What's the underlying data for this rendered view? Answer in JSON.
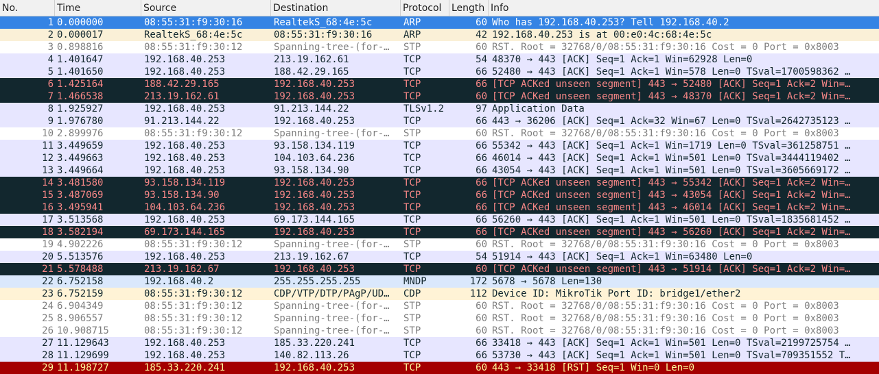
{
  "columns": {
    "no": "No.",
    "time": "Time",
    "source": "Source",
    "destination": "Destination",
    "protocol": "Protocol",
    "length": "Length",
    "info": "Info"
  },
  "packets": [
    {
      "no": "1",
      "time": "0.000000",
      "source": "08:55:31:f9:30:16",
      "destination": "RealtekS_68:4e:5c",
      "protocol": "ARP",
      "length": "60",
      "info": "Who has 192.168.40.253? Tell 192.168.40.2",
      "style": "sel"
    },
    {
      "no": "2",
      "time": "0.000017",
      "source": "RealtekS_68:4e:5c",
      "destination": "08:55:31:f9:30:16",
      "protocol": "ARP",
      "length": "42",
      "info": "192.168.40.253 is at 00:e0:4c:68:4e:5c",
      "style": "arp"
    },
    {
      "no": "3",
      "time": "0.898816",
      "source": "08:55:31:f9:30:12",
      "destination": "Spanning-tree-(for-…",
      "protocol": "STP",
      "length": "60",
      "info": "RST. Root = 32768/0/08:55:31:f9:30:16  Cost = 0  Port = 0x8003",
      "style": "stp"
    },
    {
      "no": "4",
      "time": "1.401647",
      "source": "192.168.40.253",
      "destination": "213.19.162.61",
      "protocol": "TCP",
      "length": "54",
      "info": "48370 → 443 [ACK] Seq=1 Ack=1 Win=62928 Len=0",
      "style": "tcp"
    },
    {
      "no": "5",
      "time": "1.401650",
      "source": "192.168.40.253",
      "destination": "188.42.29.165",
      "protocol": "TCP",
      "length": "66",
      "info": "52480 → 443 [ACK] Seq=1 Ack=1 Win=578 Len=0 TSval=1700598362 …",
      "style": "tcp"
    },
    {
      "no": "6",
      "time": "1.425164",
      "source": "188.42.29.165",
      "destination": "192.168.40.253",
      "protocol": "TCP",
      "length": "66",
      "info": "[TCP ACKed unseen segment] 443 → 52480 [ACK] Seq=1 Ack=2 Win=…",
      "style": "bad"
    },
    {
      "no": "7",
      "time": "1.466538",
      "source": "213.19.162.61",
      "destination": "192.168.40.253",
      "protocol": "TCP",
      "length": "60",
      "info": "[TCP ACKed unseen segment] 443 → 48370 [ACK] Seq=1 Ack=2 Win=…",
      "style": "bad"
    },
    {
      "no": "8",
      "time": "1.925927",
      "source": "192.168.40.253",
      "destination": "91.213.144.22",
      "protocol": "TLSv1.2",
      "length": "97",
      "info": "Application Data",
      "style": "tcp"
    },
    {
      "no": "9",
      "time": "1.976780",
      "source": "91.213.144.22",
      "destination": "192.168.40.253",
      "protocol": "TCP",
      "length": "66",
      "info": "443 → 36206 [ACK] Seq=1 Ack=32 Win=67 Len=0 TSval=2642735123 …",
      "style": "tcp"
    },
    {
      "no": "10",
      "time": "2.899976",
      "source": "08:55:31:f9:30:12",
      "destination": "Spanning-tree-(for-…",
      "protocol": "STP",
      "length": "60",
      "info": "RST. Root = 32768/0/08:55:31:f9:30:16  Cost = 0  Port = 0x8003",
      "style": "stp"
    },
    {
      "no": "11",
      "time": "3.449659",
      "source": "192.168.40.253",
      "destination": "93.158.134.119",
      "protocol": "TCP",
      "length": "66",
      "info": "55342 → 443 [ACK] Seq=1 Ack=1 Win=1719 Len=0 TSval=361258751 …",
      "style": "tcp"
    },
    {
      "no": "12",
      "time": "3.449663",
      "source": "192.168.40.253",
      "destination": "104.103.64.236",
      "protocol": "TCP",
      "length": "66",
      "info": "46014 → 443 [ACK] Seq=1 Ack=1 Win=501 Len=0 TSval=3444119402 …",
      "style": "tcp"
    },
    {
      "no": "13",
      "time": "3.449664",
      "source": "192.168.40.253",
      "destination": "93.158.134.90",
      "protocol": "TCP",
      "length": "66",
      "info": "43054 → 443 [ACK] Seq=1 Ack=1 Win=501 Len=0 TSval=3605669172 …",
      "style": "tcp"
    },
    {
      "no": "14",
      "time": "3.481580",
      "source": "93.158.134.119",
      "destination": "192.168.40.253",
      "protocol": "TCP",
      "length": "66",
      "info": "[TCP ACKed unseen segment] 443 → 55342 [ACK] Seq=1 Ack=2 Win=…",
      "style": "bad"
    },
    {
      "no": "15",
      "time": "3.487069",
      "source": "93.158.134.90",
      "destination": "192.168.40.253",
      "protocol": "TCP",
      "length": "66",
      "info": "[TCP ACKed unseen segment] 443 → 43054 [ACK] Seq=1 Ack=2 Win=…",
      "style": "bad"
    },
    {
      "no": "16",
      "time": "3.495941",
      "source": "104.103.64.236",
      "destination": "192.168.40.253",
      "protocol": "TCP",
      "length": "66",
      "info": "[TCP ACKed unseen segment] 443 → 46014 [ACK] Seq=1 Ack=2 Win=…",
      "style": "bad"
    },
    {
      "no": "17",
      "time": "3.513568",
      "source": "192.168.40.253",
      "destination": "69.173.144.165",
      "protocol": "TCP",
      "length": "66",
      "info": "56260 → 443 [ACK] Seq=1 Ack=1 Win=501 Len=0 TSval=1835681452 …",
      "style": "tcp"
    },
    {
      "no": "18",
      "time": "3.582194",
      "source": "69.173.144.165",
      "destination": "192.168.40.253",
      "protocol": "TCP",
      "length": "66",
      "info": "[TCP ACKed unseen segment] 443 → 56260 [ACK] Seq=1 Ack=2 Win=…",
      "style": "bad"
    },
    {
      "no": "19",
      "time": "4.902226",
      "source": "08:55:31:f9:30:12",
      "destination": "Spanning-tree-(for-…",
      "protocol": "STP",
      "length": "60",
      "info": "RST. Root = 32768/0/08:55:31:f9:30:16  Cost = 0  Port = 0x8003",
      "style": "stp"
    },
    {
      "no": "20",
      "time": "5.513576",
      "source": "192.168.40.253",
      "destination": "213.19.162.67",
      "protocol": "TCP",
      "length": "54",
      "info": "51914 → 443 [ACK] Seq=1 Ack=1 Win=63480 Len=0",
      "style": "tcp"
    },
    {
      "no": "21",
      "time": "5.578488",
      "source": "213.19.162.67",
      "destination": "192.168.40.253",
      "protocol": "TCP",
      "length": "60",
      "info": "[TCP ACKed unseen segment] 443 → 51914 [ACK] Seq=1 Ack=2 Win=…",
      "style": "bad"
    },
    {
      "no": "22",
      "time": "6.752158",
      "source": "192.168.40.2",
      "destination": "255.255.255.255",
      "protocol": "MNDP",
      "length": "172",
      "info": "5678 → 5678 Len=130",
      "style": "mndp"
    },
    {
      "no": "23",
      "time": "6.752159",
      "source": "08:55:31:f9:30:12",
      "destination": "CDP/VTP/DTP/PAgP/UD…",
      "protocol": "CDP",
      "length": "112",
      "info": "Device ID: MikroTik  Port ID: bridge1/ether2",
      "style": "cdp"
    },
    {
      "no": "24",
      "time": "6.904349",
      "source": "08:55:31:f9:30:12",
      "destination": "Spanning-tree-(for-…",
      "protocol": "STP",
      "length": "60",
      "info": "RST. Root = 32768/0/08:55:31:f9:30:16  Cost = 0  Port = 0x8003",
      "style": "stp"
    },
    {
      "no": "25",
      "time": "8.906557",
      "source": "08:55:31:f9:30:12",
      "destination": "Spanning-tree-(for-…",
      "protocol": "STP",
      "length": "60",
      "info": "RST. Root = 32768/0/08:55:31:f9:30:16  Cost = 0  Port = 0x8003",
      "style": "stp"
    },
    {
      "no": "26",
      "time": "10.908715",
      "source": "08:55:31:f9:30:12",
      "destination": "Spanning-tree-(for-…",
      "protocol": "STP",
      "length": "60",
      "info": "RST. Root = 32768/0/08:55:31:f9:30:16  Cost = 0  Port = 0x8003",
      "style": "stp"
    },
    {
      "no": "27",
      "time": "11.129643",
      "source": "192.168.40.253",
      "destination": "185.33.220.241",
      "protocol": "TCP",
      "length": "66",
      "info": "33418 → 443 [ACK] Seq=1 Ack=1 Win=501 Len=0 TSval=2199725754 …",
      "style": "tcp"
    },
    {
      "no": "28",
      "time": "11.129699",
      "source": "192.168.40.253",
      "destination": "140.82.113.26",
      "protocol": "TCP",
      "length": "66",
      "info": "53730 → 443 [ACK] Seq=1 Ack=1 Win=501 Len=0 TSval=709351552 T…",
      "style": "tcp"
    },
    {
      "no": "29",
      "time": "11.198727",
      "source": "185.33.220.241",
      "destination": "192.168.40.253",
      "protocol": "TCP",
      "length": "60",
      "info": "443 → 33418 [RST] Seq=1 Win=0 Len=0",
      "style": "rst"
    }
  ]
}
